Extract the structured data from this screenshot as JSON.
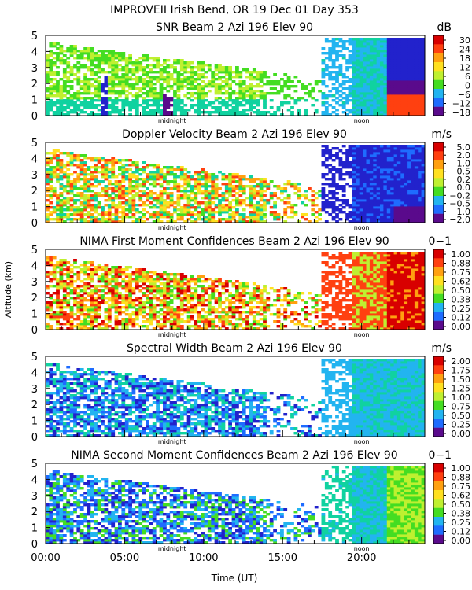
{
  "chart_data": {
    "type": "heatmap",
    "title": "IMPROVEII  Irish Bend, OR  19 Dec 01 Day 353",
    "xlabel": "Time (UT)",
    "ylabel": "Altitude (km)",
    "xlim": [
      0,
      24
    ],
    "ylim": [
      0,
      5
    ],
    "x_ticks": [
      {
        "value": 0,
        "label": "00:00"
      },
      {
        "value": 5,
        "label": "05:00"
      },
      {
        "value": 10,
        "label": "10:00"
      },
      {
        "value": 15,
        "label": "15:00"
      },
      {
        "value": 20,
        "label": "20:00"
      }
    ],
    "y_ticks": [
      "0",
      "1",
      "2",
      "3",
      "4",
      "5"
    ],
    "markers": [
      {
        "time": 8.0,
        "label": "midnight"
      },
      {
        "time": 20.0,
        "label": "noon"
      }
    ],
    "panels": [
      {
        "title": "SNR Beam 2 Azi 196 Elev 90",
        "unit": "dB",
        "colorbar_ticks": [
          "30",
          "24",
          "18",
          "12",
          "6",
          "0",
          "−6",
          "−12",
          "−18"
        ],
        "colorbar_range": [
          -20,
          34
        ]
      },
      {
        "title": "Doppler Velocity Beam 2 Azi 196 Elev 90",
        "unit": "m/s",
        "colorbar_ticks": [
          "5.0",
          "2.0",
          "1.0",
          "0.5",
          "0.2",
          "0.0",
          "−0.2",
          "−0.5",
          "−1.0",
          "−2.0"
        ],
        "colorbar_range": [
          -2.0,
          5.0
        ]
      },
      {
        "title": "NIMA First Moment Confidences Beam 2 Azi 196 Elev 90",
        "unit": "0−1",
        "colorbar_ticks": [
          "1.00",
          "0.88",
          "0.75",
          "0.62",
          "0.50",
          "0.38",
          "0.25",
          "0.12",
          "0.00"
        ],
        "colorbar_range": [
          0,
          1
        ]
      },
      {
        "title": "Spectral Width Beam 2 Azi 196 Elev 90",
        "unit": "m/s",
        "colorbar_ticks": [
          "2.00",
          "1.75",
          "1.50",
          "1.25",
          "1.00",
          "0.75",
          "0.50",
          "0.25",
          "0.00"
        ],
        "colorbar_range": [
          0,
          2
        ]
      },
      {
        "title": "NIMA Second Moment Confidences Beam 2 Azi 196 Elev 90",
        "unit": "0−1",
        "colorbar_ticks": [
          "1.00",
          "0.88",
          "0.75",
          "0.62",
          "0.50",
          "0.38",
          "0.25",
          "0.12",
          "0.00"
        ],
        "colorbar_range": [
          0,
          1
        ]
      }
    ]
  },
  "colors": {
    "palette": [
      "#5a0a8c",
      "#2222cc",
      "#1e6cff",
      "#22b4f0",
      "#10d2a0",
      "#44dd22",
      "#bff030",
      "#ffe020",
      "#ffa010",
      "#ff4010",
      "#d80000"
    ]
  }
}
